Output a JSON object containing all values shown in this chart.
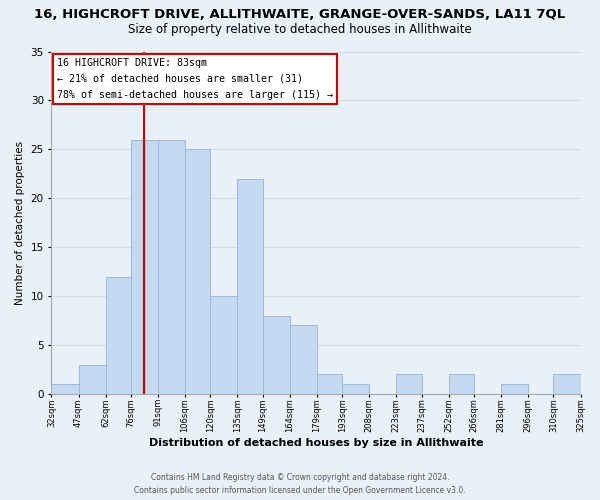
{
  "title": "16, HIGHCROFT DRIVE, ALLITHWAITE, GRANGE-OVER-SANDS, LA11 7QL",
  "subtitle": "Size of property relative to detached houses in Allithwaite",
  "xlabel": "Distribution of detached houses by size in Allithwaite",
  "ylabel": "Number of detached properties",
  "bar_edges": [
    32,
    47,
    62,
    76,
    91,
    106,
    120,
    135,
    149,
    164,
    179,
    193,
    208,
    223,
    237,
    252,
    266,
    281,
    296,
    310,
    325
  ],
  "bar_heights": [
    1,
    3,
    12,
    26,
    26,
    25,
    10,
    22,
    8,
    7,
    2,
    1,
    0,
    2,
    0,
    2,
    0,
    1,
    0,
    2
  ],
  "bar_color": "#c5d9f0",
  "bar_edge_color": "#a0b8d8",
  "vline_x": 83,
  "vline_color": "#cc0000",
  "ylim": [
    0,
    35
  ],
  "xlim": [
    32,
    325
  ],
  "tick_labels": [
    "32sqm",
    "47sqm",
    "62sqm",
    "76sqm",
    "91sqm",
    "106sqm",
    "120sqm",
    "135sqm",
    "149sqm",
    "164sqm",
    "179sqm",
    "193sqm",
    "208sqm",
    "223sqm",
    "237sqm",
    "252sqm",
    "266sqm",
    "281sqm",
    "296sqm",
    "310sqm",
    "325sqm"
  ],
  "annotation_title": "16 HIGHCROFT DRIVE: 83sqm",
  "annotation_line1": "← 21% of detached houses are smaller (31)",
  "annotation_line2": "78% of semi-detached houses are larger (115) →",
  "annotation_box_color": "#ffffff",
  "annotation_box_edge": "#cc0000",
  "footer1": "Contains HM Land Registry data © Crown copyright and database right 2024.",
  "footer2": "Contains public sector information licensed under the Open Government Licence v3.0.",
  "yticks": [
    0,
    5,
    10,
    15,
    20,
    25,
    30,
    35
  ],
  "grid_color": "#d0dde8",
  "background_color": "#e8f0f8"
}
